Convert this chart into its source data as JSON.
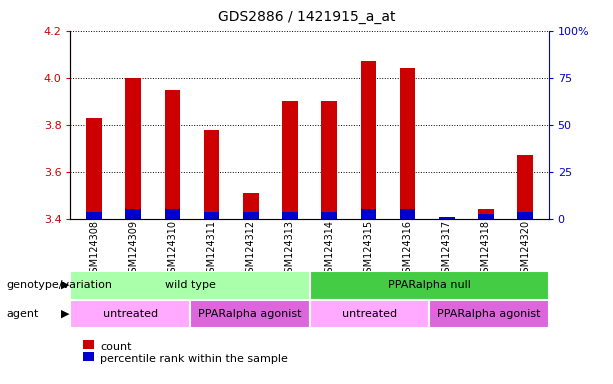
{
  "title": "GDS2886 / 1421915_a_at",
  "samples": [
    "GSM124308",
    "GSM124309",
    "GSM124310",
    "GSM124311",
    "GSM124312",
    "GSM124313",
    "GSM124314",
    "GSM124315",
    "GSM124316",
    "GSM124317",
    "GSM124318",
    "GSM124320"
  ],
  "count_values": [
    3.83,
    4.0,
    3.95,
    3.78,
    3.51,
    3.9,
    3.9,
    4.07,
    4.04,
    3.4,
    3.44,
    3.67
  ],
  "percentile_values": [
    3.43,
    3.44,
    3.44,
    3.43,
    3.43,
    3.43,
    3.43,
    3.44,
    3.44,
    3.41,
    3.42,
    3.43
  ],
  "bar_bottom": 3.4,
  "ylim": [
    3.4,
    4.2
  ],
  "y_ticks": [
    3.4,
    3.6,
    3.8,
    4.0,
    4.2
  ],
  "right_ytick_vals": [
    0,
    25,
    50,
    75,
    100
  ],
  "right_ytick_labels": [
    "0",
    "25",
    "50",
    "75",
    "100%"
  ],
  "right_ylim": [
    0,
    100
  ],
  "red_color": "#cc0000",
  "blue_color": "#0000cc",
  "plot_bg": "#ffffff",
  "bar_width": 0.4,
  "genotype_groups": [
    {
      "label": "wild type",
      "start": 0,
      "end": 6,
      "color": "#aaffaa"
    },
    {
      "label": "PPARalpha null",
      "start": 6,
      "end": 12,
      "color": "#44cc44"
    }
  ],
  "agent_groups": [
    {
      "label": "untreated",
      "start": 0,
      "end": 3,
      "color": "#ffaaff"
    },
    {
      "label": "PPARalpha agonist",
      "start": 3,
      "end": 6,
      "color": "#dd66dd"
    },
    {
      "label": "untreated",
      "start": 6,
      "end": 9,
      "color": "#ffaaff"
    },
    {
      "label": "PPARalpha agonist",
      "start": 9,
      "end": 12,
      "color": "#dd66dd"
    }
  ],
  "legend_items": [
    {
      "label": "count",
      "color": "#cc0000"
    },
    {
      "label": "percentile rank within the sample",
      "color": "#0000cc"
    }
  ]
}
